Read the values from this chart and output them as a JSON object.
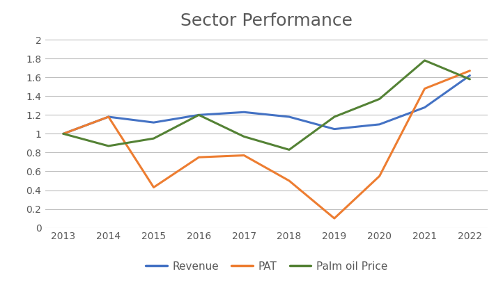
{
  "title": "Sector Performance",
  "years": [
    2013,
    2014,
    2015,
    2016,
    2017,
    2018,
    2019,
    2020,
    2021,
    2022
  ],
  "revenue": [
    1.0,
    1.18,
    1.12,
    1.2,
    1.23,
    1.18,
    1.05,
    1.1,
    1.28,
    1.62
  ],
  "pat": [
    1.0,
    1.18,
    0.43,
    0.75,
    0.77,
    0.5,
    0.1,
    0.55,
    1.48,
    1.67
  ],
  "palm_oil_price": [
    1.0,
    0.87,
    0.95,
    1.2,
    0.97,
    0.83,
    1.18,
    1.37,
    1.78,
    1.58
  ],
  "revenue_color": "#4472C4",
  "pat_color": "#ED7D31",
  "palm_oil_color": "#548235",
  "ylim": [
    0,
    2.05
  ],
  "yticks": [
    0,
    0.2,
    0.4,
    0.6,
    0.8,
    1.0,
    1.2,
    1.4,
    1.6,
    1.8,
    2.0
  ],
  "line_width": 2.2,
  "background_color": "#FFFFFF",
  "grid_color": "#BFBFBF",
  "title_fontsize": 18,
  "legend_labels": [
    "Revenue",
    "PAT",
    "Palm oil Price"
  ],
  "title_color": "#595959",
  "tick_fontsize": 10,
  "xlim_left": 2012.6,
  "xlim_right": 2022.4
}
